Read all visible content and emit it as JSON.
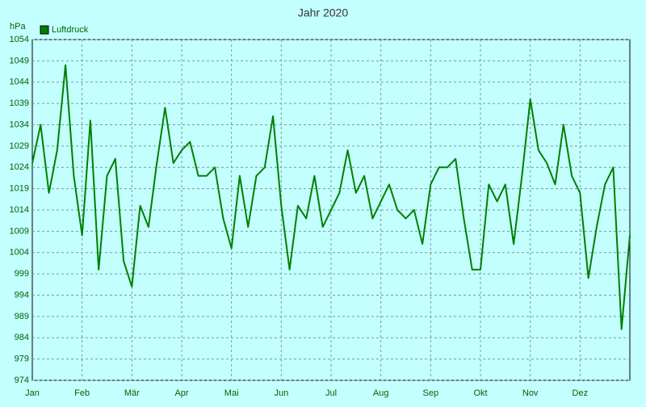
{
  "chart_data": {
    "type": "line",
    "title": "Jahr 2020",
    "y_label": "hPa",
    "categories": [
      "Jan",
      null,
      null,
      null,
      null,
      null,
      "Feb",
      null,
      null,
      null,
      null,
      null,
      "Mär",
      null,
      null,
      null,
      null,
      null,
      "Apr",
      null,
      null,
      null,
      null,
      null,
      "Mai",
      null,
      null,
      null,
      null,
      null,
      "Jun",
      null,
      null,
      null,
      null,
      null,
      "Jul",
      null,
      null,
      null,
      null,
      null,
      "Aug",
      null,
      null,
      null,
      null,
      null,
      "Sep",
      null,
      null,
      null,
      null,
      null,
      "Okt",
      null,
      null,
      null,
      null,
      null,
      "Nov",
      null,
      null,
      null,
      null,
      null,
      "Dez",
      null,
      null,
      null,
      null,
      null,
      null
    ],
    "series": [
      {
        "name": "Luftdruck",
        "color": "#008000",
        "values": [
          1025,
          1034,
          1018,
          1028,
          1048,
          1022,
          1008,
          1035,
          1000,
          1022,
          1026,
          1002,
          996,
          1015,
          1010,
          1025,
          1038,
          1025,
          1028,
          1030,
          1022,
          1022,
          1024,
          1012,
          1005,
          1022,
          1010,
          1022,
          1024,
          1036,
          1015,
          1000,
          1015,
          1012,
          1022,
          1010,
          1014,
          1018,
          1028,
          1018,
          1022,
          1012,
          1016,
          1020,
          1014,
          1012,
          1014,
          1006,
          1020,
          1024,
          1024,
          1026,
          1012,
          1000,
          1000,
          1020,
          1016,
          1020,
          1006,
          1022,
          1040,
          1028,
          1025,
          1020,
          1034,
          1022,
          1018,
          998,
          1010,
          1020,
          1024,
          986,
          1008
        ]
      }
    ],
    "ylim": [
      974,
      1054
    ],
    "yticks": [
      974,
      979,
      984,
      989,
      994,
      999,
      1004,
      1009,
      1014,
      1019,
      1024,
      1029,
      1034,
      1039,
      1044,
      1049,
      1054
    ],
    "grid": true,
    "legend": "top-left"
  }
}
